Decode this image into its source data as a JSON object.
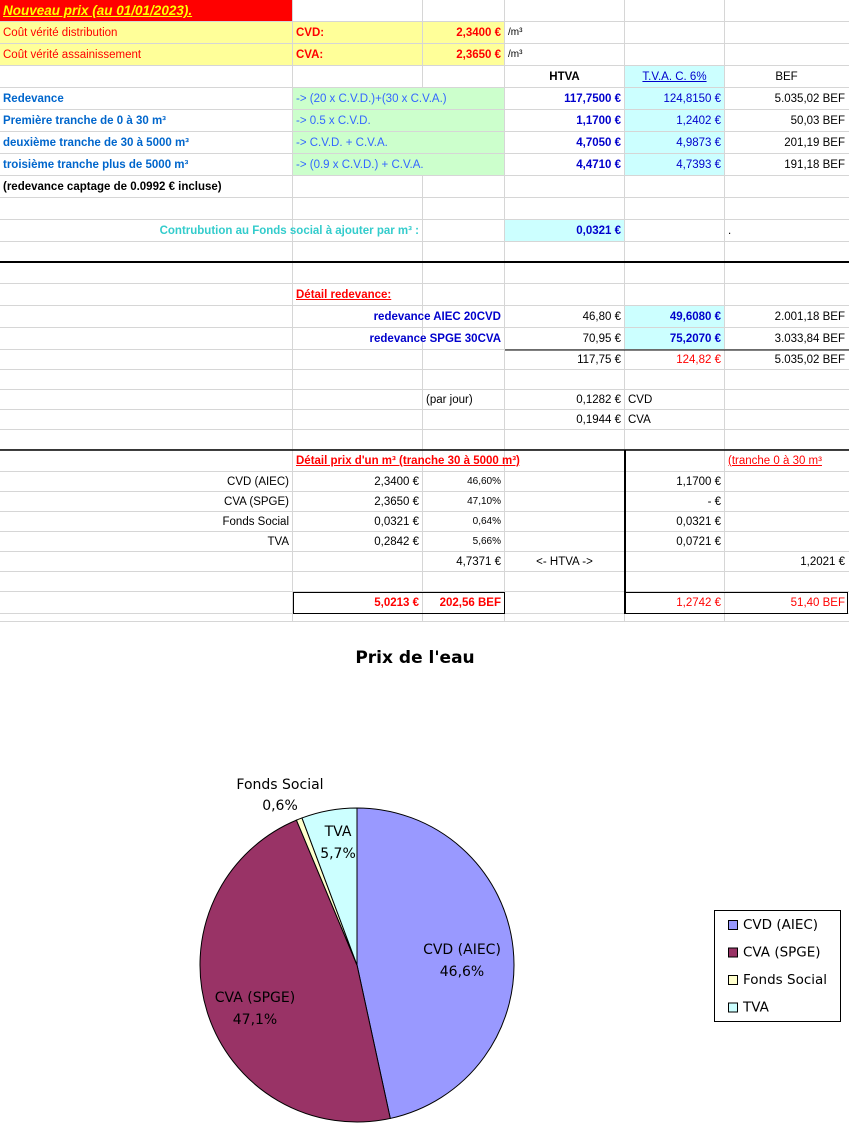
{
  "sheet": {
    "rows": [
      {
        "A": "Nouveau prix (au 01/01/2023)."
      },
      {
        "A": "Coût vérité distribution",
        "B": "CVD:",
        "C": "2,3400 €",
        "D": "/m³"
      },
      {
        "A": "Coût vérité assainissement",
        "B": "CVA:",
        "C": "2,3650 €",
        "D": "/m³"
      },
      {
        "D": "HTVA",
        "E": "T.V.A. C. 6%",
        "F": "BEF"
      },
      {
        "A": "Redevance",
        "B": "-> (20 x C.V.D.)+(30 x C.V.A.)",
        "D": "117,7500 €",
        "E": "124,8150 €",
        "F": "5.035,02 BEF"
      },
      {
        "A": "Première tranche de 0 à 30 m³",
        "B": "-> 0.5 x C.V.D.",
        "D": "1,1700 €",
        "E": "1,2402 €",
        "F": "50,03 BEF"
      },
      {
        "A": "deuxième tranche de 30 à 5000 m³",
        "B": "-> C.V.D. + C.V.A.",
        "D": "4,7050 €",
        "E": "4,9873 €",
        "F": "201,19 BEF"
      },
      {
        "A": "troisième tranche plus de 5000 m³",
        "B": "-> (0.9 x C.V.D.) + C.V.A.",
        "D": "4,4710 €",
        "E": "4,7393 €",
        "F": "191,18 BEF"
      },
      {
        "A": "(redevance captage de 0.0992 € incluse)"
      },
      {},
      {
        "A": "Contrubution au Fonds social à ajouter par m³ :",
        "D": "0,0321 €",
        "F": "."
      },
      {},
      {},
      {
        "B": "Détail redevance:"
      },
      {
        "C": "redevance AIEC 20CVD",
        "D": "46,80 €",
        "E": "49,6080 €",
        "F": "2.001,18 BEF"
      },
      {
        "C": "redevance SPGE 30CVA",
        "D": "70,95 €",
        "E": "75,2070 €",
        "F": "3.033,84 BEF"
      },
      {
        "D": "117,75 €",
        "E": "124,82 €",
        "F": "5.035,02 BEF"
      },
      {},
      {
        "C": "(par jour)",
        "D": "0,1282 €",
        "E": "CVD"
      },
      {
        "D": "0,1944 €",
        "E": "CVA"
      },
      {},
      {
        "B": "Détail prix d'un m³ (tranche 30 à 5000 m³)",
        "F": "(tranche 0 à 30 m³"
      },
      {
        "A": "CVD (AIEC)",
        "B": "2,3400 €",
        "C": "46,60%",
        "E": "1,1700 €"
      },
      {
        "A": "CVA (SPGE)",
        "B": "2,3650 €",
        "C": "47,10%",
        "E": "-    €"
      },
      {
        "A": "Fonds Social",
        "B": "0,0321 €",
        "C": "0,64%",
        "E": "0,0321 €"
      },
      {
        "A": "TVA",
        "B": "0,2842 €",
        "C": "5,66%",
        "E": "0,0721 €"
      },
      {
        "C": "4,7371 €",
        "D": "<- HTVA ->",
        "F": "1,2021 €"
      },
      {},
      {
        "B": "5,0213 €",
        "C": "202,56 BEF",
        "E": "1,2742 €",
        "F": "51,40 BEF"
      },
      {}
    ]
  },
  "chart_data": {
    "type": "pie",
    "title": "Prix de l'eau",
    "categories": [
      "CVD (AIEC)",
      "CVA (SPGE)",
      "Fonds Social",
      "TVA"
    ],
    "values": [
      46.6,
      47.1,
      0.6,
      5.7
    ],
    "value_labels": [
      "46,6%",
      "47,1%",
      "0,6%",
      "5,7%"
    ],
    "colors": [
      "#9999ff",
      "#993366",
      "#ffffcc",
      "#ccffff"
    ],
    "legend": "right"
  }
}
